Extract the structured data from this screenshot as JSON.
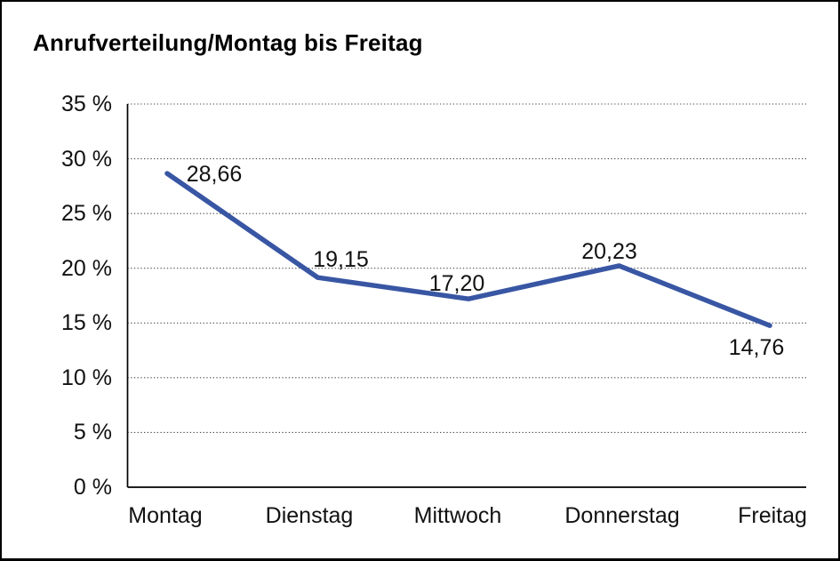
{
  "title": "Anrufverteilung/Montag bis Freitag",
  "frame": {
    "background": "#ffffff",
    "border_color": "#000000"
  },
  "colors": {
    "line": "#3856a3",
    "gridline": "#4a4a4a",
    "axis": "#000000",
    "text": "#111111"
  },
  "chart_data": {
    "type": "line",
    "title": "Anrufverteilung/Montag bis Freitag",
    "categories": [
      "Montag",
      "Dienstag",
      "Mittwoch",
      "Donnerstag",
      "Freitag"
    ],
    "values": [
      28.66,
      19.15,
      17.2,
      20.23,
      14.76
    ],
    "value_labels": [
      "28,66",
      "19,15",
      "17,20",
      "20,23",
      "14,76"
    ],
    "xlabel": "",
    "ylabel": "",
    "ylim": [
      0,
      35
    ],
    "ytick_step": 5,
    "ytick_labels": [
      "0 %",
      "5 %",
      "10 %",
      "15 %",
      "20 %",
      "25 %",
      "30 %",
      "35 %"
    ],
    "grid": "horizontal-dotted",
    "legend": "none",
    "markers": "none",
    "line_color": "#3856a3"
  }
}
